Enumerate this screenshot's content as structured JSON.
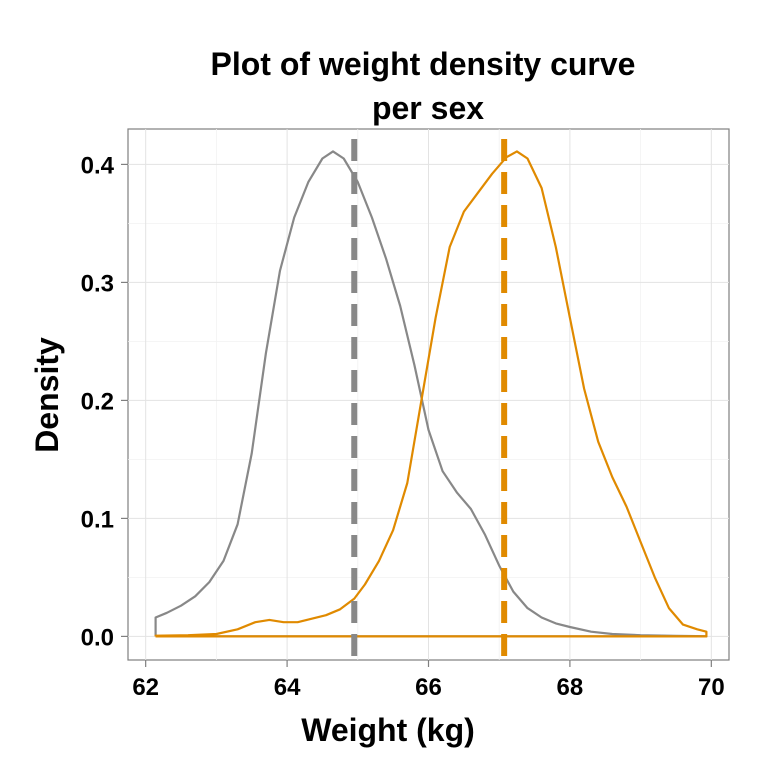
{
  "chart_data": {
    "type": "line",
    "title": [
      "Plot of weight density curve",
      "per sex"
    ],
    "xlabel": "Weight (kg)",
    "ylabel": "Density",
    "xlim": [
      61.75,
      70.25
    ],
    "ylim": [
      -0.02,
      0.43
    ],
    "xticks": [
      62,
      64,
      66,
      68,
      70
    ],
    "yticks": [
      0.0,
      0.1,
      0.2,
      0.3,
      0.4
    ],
    "x_tick_labels": [
      "62",
      "64",
      "66",
      "68",
      "70"
    ],
    "y_tick_labels": [
      "0.0",
      "0.1",
      "0.2",
      "0.3",
      "0.4"
    ],
    "grid": true,
    "legend": "none",
    "series": [
      {
        "color": "#888888",
        "mean": 64.95,
        "points": [
          [
            62.14,
            0.0
          ],
          [
            62.14,
            0.016
          ],
          [
            62.3,
            0.02
          ],
          [
            62.5,
            0.026
          ],
          [
            62.7,
            0.034
          ],
          [
            62.9,
            0.046
          ],
          [
            63.1,
            0.064
          ],
          [
            63.3,
            0.095
          ],
          [
            63.5,
            0.155
          ],
          [
            63.7,
            0.24
          ],
          [
            63.9,
            0.31
          ],
          [
            64.1,
            0.355
          ],
          [
            64.3,
            0.385
          ],
          [
            64.5,
            0.405
          ],
          [
            64.65,
            0.411
          ],
          [
            64.8,
            0.405
          ],
          [
            65.0,
            0.385
          ],
          [
            65.2,
            0.355
          ],
          [
            65.4,
            0.32
          ],
          [
            65.6,
            0.28
          ],
          [
            65.8,
            0.23
          ],
          [
            66.0,
            0.175
          ],
          [
            66.2,
            0.14
          ],
          [
            66.4,
            0.122
          ],
          [
            66.6,
            0.108
          ],
          [
            66.8,
            0.086
          ],
          [
            67.0,
            0.06
          ],
          [
            67.2,
            0.038
          ],
          [
            67.4,
            0.024
          ],
          [
            67.6,
            0.016
          ],
          [
            67.8,
            0.011
          ],
          [
            68.0,
            0.008
          ],
          [
            68.3,
            0.004
          ],
          [
            68.6,
            0.002
          ],
          [
            69.0,
            0.001
          ],
          [
            69.5,
            0.0004
          ],
          [
            69.93,
            0.0002
          ],
          [
            69.93,
            0.0
          ],
          [
            62.14,
            0.0
          ]
        ]
      },
      {
        "color": "#e08a00",
        "mean": 67.07,
        "points": [
          [
            62.14,
            0.0
          ],
          [
            62.14,
            0.0006
          ],
          [
            62.6,
            0.001
          ],
          [
            63.0,
            0.002
          ],
          [
            63.3,
            0.006
          ],
          [
            63.55,
            0.012
          ],
          [
            63.75,
            0.014
          ],
          [
            63.95,
            0.012
          ],
          [
            64.15,
            0.012
          ],
          [
            64.35,
            0.015
          ],
          [
            64.55,
            0.018
          ],
          [
            64.75,
            0.023
          ],
          [
            64.95,
            0.032
          ],
          [
            65.1,
            0.044
          ],
          [
            65.3,
            0.064
          ],
          [
            65.5,
            0.09
          ],
          [
            65.7,
            0.13
          ],
          [
            65.9,
            0.2
          ],
          [
            66.1,
            0.27
          ],
          [
            66.3,
            0.33
          ],
          [
            66.5,
            0.36
          ],
          [
            66.7,
            0.376
          ],
          [
            66.9,
            0.392
          ],
          [
            67.1,
            0.406
          ],
          [
            67.25,
            0.411
          ],
          [
            67.4,
            0.405
          ],
          [
            67.6,
            0.38
          ],
          [
            67.8,
            0.33
          ],
          [
            68.0,
            0.27
          ],
          [
            68.2,
            0.21
          ],
          [
            68.4,
            0.165
          ],
          [
            68.6,
            0.135
          ],
          [
            68.8,
            0.11
          ],
          [
            69.0,
            0.08
          ],
          [
            69.2,
            0.05
          ],
          [
            69.4,
            0.024
          ],
          [
            69.6,
            0.01
          ],
          [
            69.8,
            0.006
          ],
          [
            69.93,
            0.004
          ],
          [
            69.93,
            0.0
          ],
          [
            62.14,
            0.0
          ]
        ]
      }
    ]
  }
}
